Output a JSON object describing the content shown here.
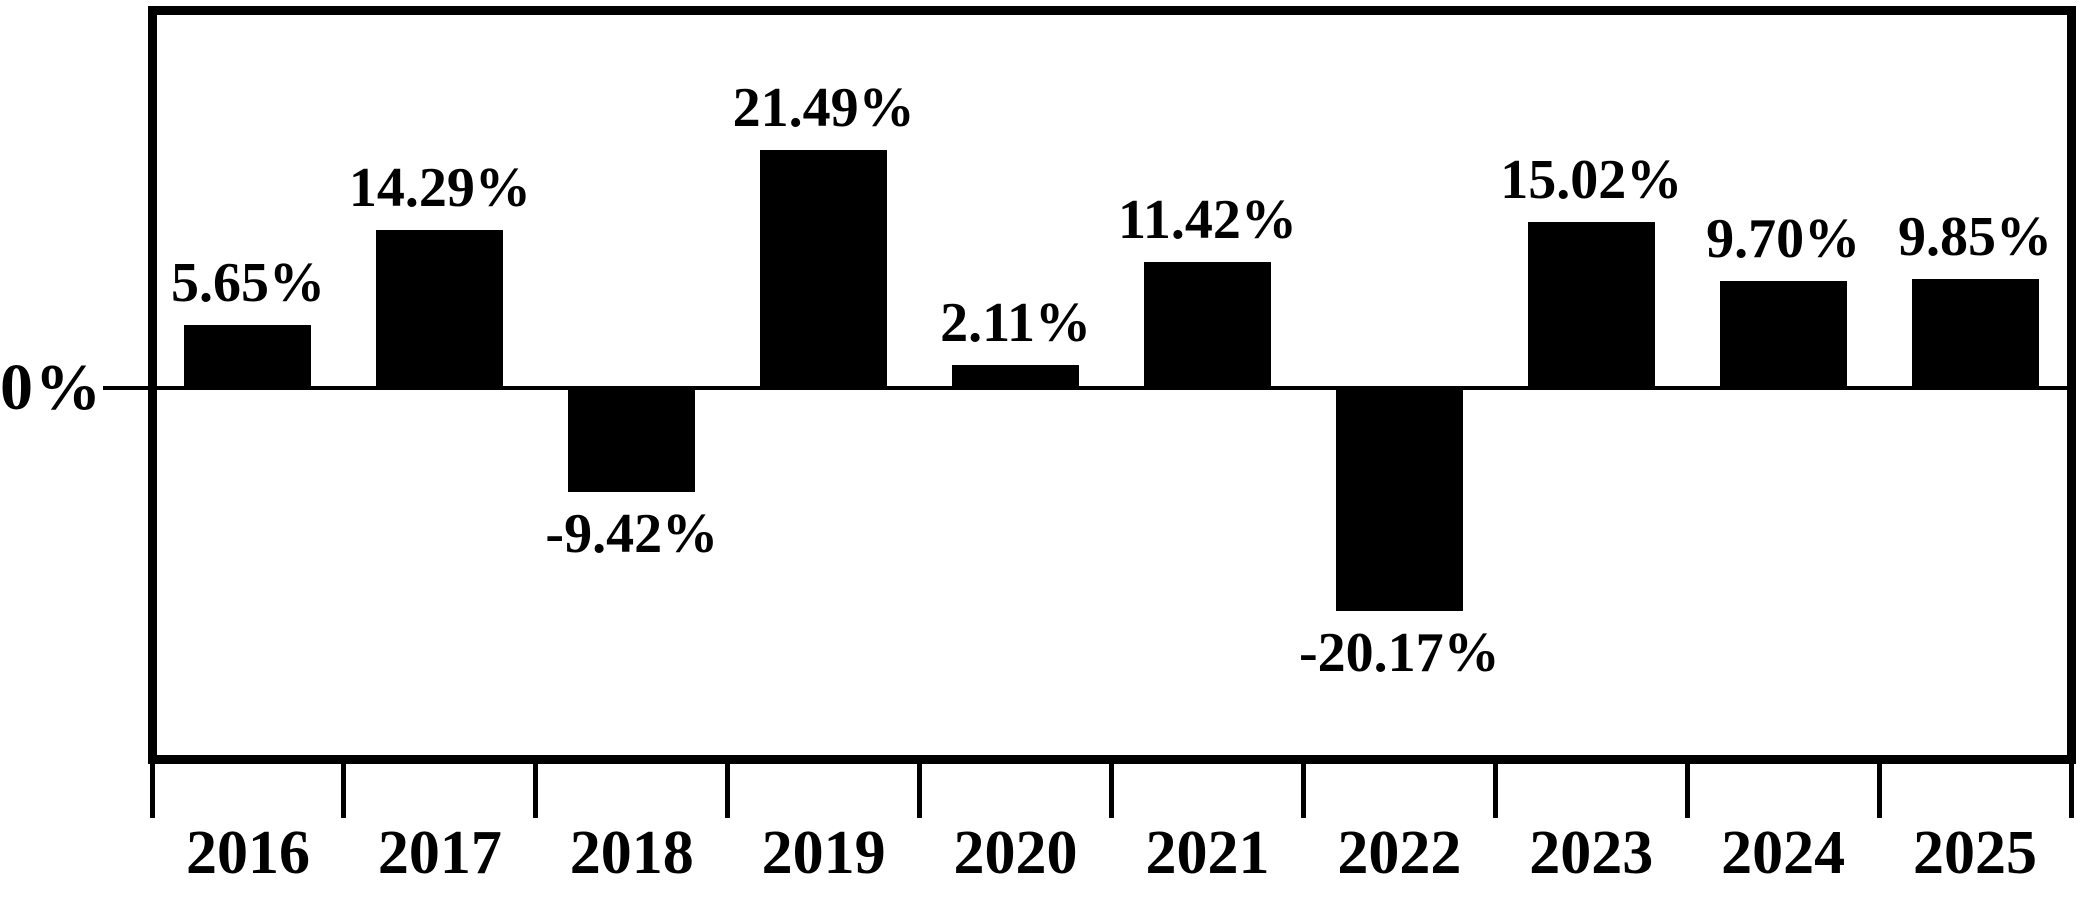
{
  "chart_data": {
    "type": "bar",
    "title": "",
    "xlabel": "",
    "ylabel": "",
    "categories": [
      "2016",
      "2017",
      "2018",
      "2019",
      "2020",
      "2021",
      "2022",
      "2023",
      "2024",
      "2025"
    ],
    "values": [
      5.65,
      14.29,
      -9.42,
      21.49,
      2.11,
      11.42,
      -20.17,
      15.02,
      9.7,
      9.85
    ],
    "value_labels": [
      "5.65%",
      "14.29%",
      "-9.42%",
      "21.49%",
      "2.11%",
      "11.42%",
      "-20.17%",
      "15.02%",
      "9.70%",
      "9.85%"
    ],
    "y_axis": {
      "zero_label": "0%",
      "ylim": [
        -33.6,
        34.2
      ],
      "tick_labels_shown": [
        "0%"
      ]
    },
    "legend": "none",
    "grid": false,
    "bar_color": "#000000",
    "text_color": "#000000",
    "background_color": "#ffffff",
    "border_color": "#000000"
  }
}
